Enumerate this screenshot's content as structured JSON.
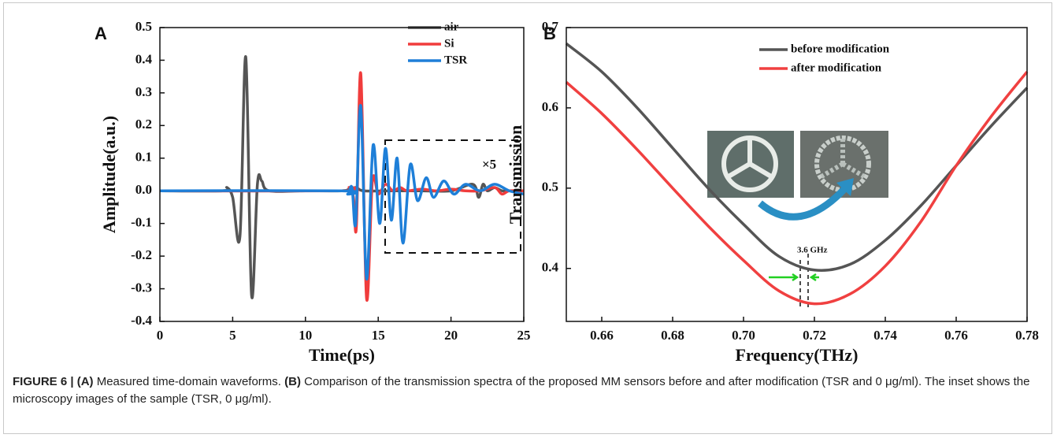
{
  "chart_data": [
    {
      "type": "line",
      "panel": "A",
      "x_label": "Time(ps)",
      "y_label": "Amplitude(a.u.)",
      "xlim": [
        0,
        25
      ],
      "xticks": [
        0,
        5,
        10,
        15,
        20,
        25
      ],
      "ylim": [
        -0.4,
        0.5
      ],
      "yticks": [
        -0.4,
        -0.3,
        -0.2,
        -0.1,
        {
          "value": 0,
          "label": "0.0"
        },
        0.1,
        0.2,
        0.3,
        0.4,
        0.5
      ],
      "legend": "upper right",
      "annotation": "×5",
      "series": [
        {
          "name": "air",
          "color": "#555555",
          "x": [
            0,
            4.3,
            4.6,
            5.0,
            5.5,
            5.9,
            6.3,
            6.7,
            7.0,
            7.5,
            10,
            12.5,
            13,
            13.5,
            14,
            16,
            18,
            20,
            21.5,
            21.9,
            22.2,
            22.5,
            23,
            23.5,
            24,
            25
          ],
          "values": [
            0,
            0,
            0.01,
            -0.02,
            -0.14,
            0.41,
            -0.32,
            0.02,
            0.03,
            0,
            0,
            0,
            0.005,
            0.01,
            0,
            0,
            0,
            0,
            0.02,
            -0.02,
            0.02,
            0,
            0.01,
            0,
            0,
            0
          ]
        },
        {
          "name": "Si",
          "color": "#f03c3c",
          "x": [
            0,
            12.5,
            13.0,
            13.3,
            13.5,
            13.8,
            14.2,
            14.6,
            15,
            15.5,
            16,
            16.5,
            17,
            18,
            19,
            20,
            21,
            22,
            23,
            23.5,
            24,
            25
          ],
          "values": [
            0,
            0,
            0.01,
            -0.02,
            -0.11,
            0.36,
            -0.33,
            0.03,
            -0.01,
            0.02,
            0,
            0.01,
            0,
            0.005,
            0,
            0.005,
            0,
            0,
            0.01,
            -0.01,
            0,
            0
          ]
        },
        {
          "name": "TSR",
          "color": "#1e7fd8",
          "x": [
            0,
            12.5,
            12.9,
            13.2,
            13.45,
            13.8,
            14.2,
            14.65,
            15.1,
            15.5,
            15.9,
            16.3,
            16.7,
            17.2,
            17.7,
            18.3,
            18.8,
            19.5,
            20.2,
            21,
            22,
            23,
            24,
            25
          ],
          "values": [
            0,
            0,
            -0.01,
            0.01,
            -0.1,
            0.26,
            -0.27,
            0.14,
            -0.1,
            0.13,
            -0.09,
            0.1,
            -0.16,
            0.08,
            -0.03,
            0.04,
            -0.02,
            0.03,
            -0.01,
            0.02,
            0,
            0.02,
            0,
            -0.01
          ]
        }
      ]
    },
    {
      "type": "line",
      "panel": "B",
      "x_label": "Frequency(THz)",
      "y_label": "Transmission",
      "xlim": [
        0.65,
        0.78
      ],
      "xticks": [
        0.66,
        0.68,
        {
          "value": 0.7,
          "label": "0.70"
        },
        0.72,
        0.74,
        0.76,
        0.78
      ],
      "ylim": [
        0.334,
        0.7
      ],
      "yticks": [
        0.4,
        0.5,
        0.6,
        0.7
      ],
      "legend": "upper right",
      "annotation": "3.6 GHz",
      "x": [
        0.65,
        0.66,
        0.67,
        0.68,
        0.69,
        0.7,
        0.71,
        0.72,
        0.73,
        0.74,
        0.75,
        0.76,
        0.77,
        0.78
      ],
      "series": [
        {
          "name": "before modification",
          "color": "#555555",
          "values": [
            0.68,
            0.645,
            0.6,
            0.55,
            0.5,
            0.455,
            0.415,
            0.398,
            0.405,
            0.435,
            0.478,
            0.528,
            0.578,
            0.625
          ]
        },
        {
          "name": "after modification",
          "color": "#f04040",
          "values": [
            0.632,
            0.593,
            0.548,
            0.5,
            0.453,
            0.41,
            0.372,
            0.356,
            0.368,
            0.403,
            0.458,
            0.528,
            0.59,
            0.645
          ]
        }
      ]
    }
  ],
  "caption": {
    "label": "FIGURE 6 |",
    "a_label": "(A)",
    "a_text": "Measured time-domain waveforms.",
    "b_label": "(B)",
    "b_text": "Comparison of the transmission spectra of the proposed MM sensors before and after modification (TSR and 0 μg/ml). The inset shows the microscopy images of the sample (TSR, 0 μg/ml)."
  }
}
